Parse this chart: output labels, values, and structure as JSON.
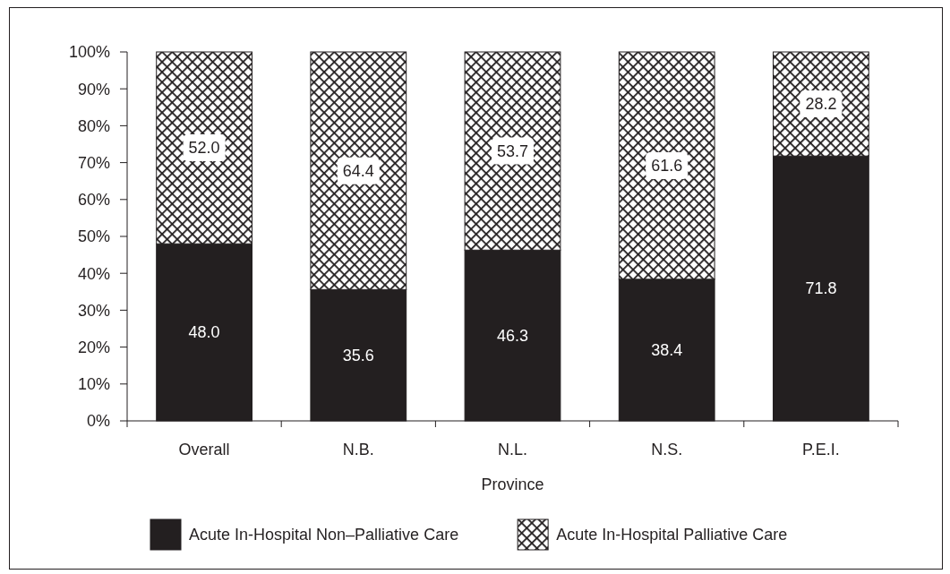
{
  "chart_data": {
    "type": "bar",
    "stacked": true,
    "xlabel": "Province",
    "categories": [
      "Overall",
      "N.B.",
      "N.L.",
      "N.S.",
      "P.E.I."
    ],
    "series": [
      {
        "name": "Acute In-Hospital Non–Palliative Care",
        "color": "#231f20",
        "values": [
          48.0,
          35.6,
          46.3,
          38.4,
          71.8
        ],
        "value_labels": [
          "48.0",
          "35.6",
          "46.3",
          "38.4",
          "71.8"
        ]
      },
      {
        "name": "Acute In-Hospital Palliative Care",
        "color": "#231f20",
        "values": [
          52.0,
          64.4,
          53.7,
          61.6,
          28.2
        ],
        "value_labels": [
          "52.0",
          "64.4",
          "53.7",
          "61.6",
          "28.2"
        ]
      }
    ],
    "ylim": [
      0,
      100
    ],
    "yticks": [
      {
        "value": 0,
        "label": "0%"
      },
      {
        "value": 10,
        "label": "10%"
      },
      {
        "value": 20,
        "label": "20%"
      },
      {
        "value": 30,
        "label": "30%"
      },
      {
        "value": 40,
        "label": "40%"
      },
      {
        "value": 50,
        "label": "50%"
      },
      {
        "value": 60,
        "label": "60%"
      },
      {
        "value": 70,
        "label": "70%"
      },
      {
        "value": 80,
        "label": "80%"
      },
      {
        "value": 90,
        "label": "90%"
      },
      {
        "value": 100,
        "label": "100%"
      }
    ],
    "legend": "bottom"
  }
}
